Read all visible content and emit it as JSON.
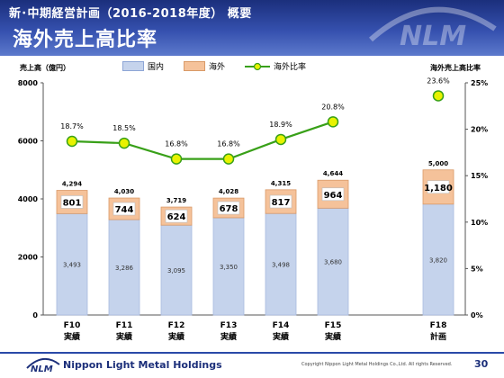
{
  "header": {
    "title": "新･中期経営計画（2016-2018年度） 概要",
    "subtitle": "海外売上高比率"
  },
  "legend": {
    "domestic": "国内",
    "overseas": "海外",
    "ratio": "海外比率"
  },
  "colors": {
    "domestic": "#c5d3ec",
    "overseas": "#f5c29a",
    "line": "#38a018",
    "header_dark": "#1b2f7c"
  },
  "chart_data": {
    "type": "bar",
    "stacked": true,
    "ylabel_left": "売上高（億円）",
    "ylabel_right": "海外売上高比率",
    "categories": [
      "F10",
      "F11",
      "F12",
      "F13",
      "F14",
      "F15",
      "F18"
    ],
    "category_sub": [
      "実績",
      "実績",
      "実績",
      "実績",
      "実績",
      "実績",
      "計画"
    ],
    "series": [
      {
        "name": "国内",
        "values": [
          3493,
          3286,
          3095,
          3350,
          3498,
          3680,
          3820
        ]
      },
      {
        "name": "海外",
        "values": [
          801,
          744,
          624,
          678,
          817,
          964,
          1180
        ]
      }
    ],
    "totals": [
      4294,
      4030,
      3719,
      4028,
      4315,
      4644,
      5000
    ],
    "ratio": {
      "name": "海外比率",
      "values": [
        18.7,
        18.5,
        16.8,
        16.8,
        18.9,
        20.8,
        23.6
      ]
    },
    "ratio_labels": [
      "18.7%",
      "18.5%",
      "16.8%",
      "16.8%",
      "18.9%",
      "20.8%",
      "23.6%"
    ],
    "ylim": [
      0,
      8000
    ],
    "yticks": [
      "0",
      "2000",
      "4000",
      "6000",
      "8000"
    ],
    "y2lim": [
      0,
      25
    ],
    "y2ticks": [
      "0%",
      "5%",
      "10%",
      "15%",
      "20%",
      "25%"
    ]
  },
  "footer": {
    "brand": "Nippon Light Metal Holdings",
    "copyright": "Copyright Nippon Light Metal Holdings Co.,Ltd. All rights Reserved.",
    "page": "30"
  }
}
